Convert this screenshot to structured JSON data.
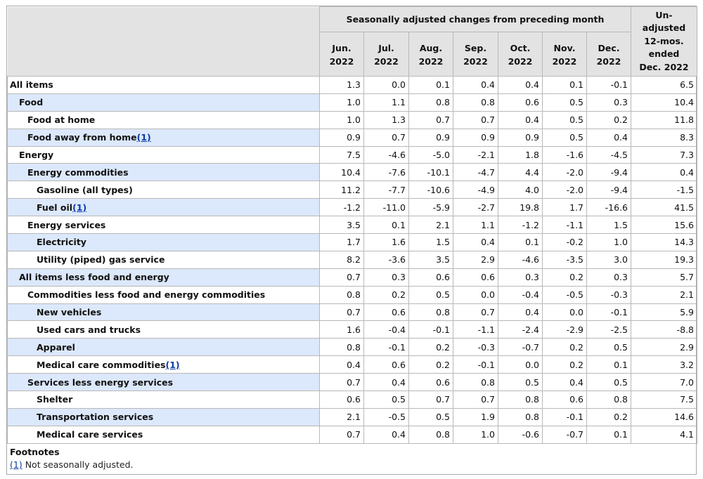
{
  "header": {
    "group_label": "Seasonally adjusted changes from preceding month",
    "months": [
      {
        "line1": "Jun.",
        "line2": "2022"
      },
      {
        "line1": "Jul.",
        "line2": "2022"
      },
      {
        "line1": "Aug.",
        "line2": "2022"
      },
      {
        "line1": "Sep.",
        "line2": "2022"
      },
      {
        "line1": "Oct.",
        "line2": "2022"
      },
      {
        "line1": "Nov.",
        "line2": "2022"
      },
      {
        "line1": "Dec.",
        "line2": "2022"
      }
    ],
    "unadjusted_lines": [
      "Un-",
      "adjusted",
      "12-mos.",
      "ended",
      "Dec. 2022"
    ]
  },
  "rows": [
    {
      "label": "All items",
      "level": 0,
      "shade": false,
      "fn": "",
      "values": [
        "1.3",
        "0.0",
        "0.1",
        "0.4",
        "0.4",
        "0.1",
        "-0.1",
        "6.5"
      ]
    },
    {
      "label": "Food",
      "level": 1,
      "shade": true,
      "fn": "",
      "values": [
        "1.0",
        "1.1",
        "0.8",
        "0.8",
        "0.6",
        "0.5",
        "0.3",
        "10.4"
      ]
    },
    {
      "label": "Food at home",
      "level": 2,
      "shade": false,
      "fn": "",
      "values": [
        "1.0",
        "1.3",
        "0.7",
        "0.7",
        "0.4",
        "0.5",
        "0.2",
        "11.8"
      ]
    },
    {
      "label": "Food away from home",
      "level": 2,
      "shade": true,
      "fn": "(1)",
      "values": [
        "0.9",
        "0.7",
        "0.9",
        "0.9",
        "0.9",
        "0.5",
        "0.4",
        "8.3"
      ]
    },
    {
      "label": "Energy",
      "level": 1,
      "shade": false,
      "fn": "",
      "values": [
        "7.5",
        "-4.6",
        "-5.0",
        "-2.1",
        "1.8",
        "-1.6",
        "-4.5",
        "7.3"
      ]
    },
    {
      "label": "Energy commodities",
      "level": 2,
      "shade": true,
      "fn": "",
      "values": [
        "10.4",
        "-7.6",
        "-10.1",
        "-4.7",
        "4.4",
        "-2.0",
        "-9.4",
        "0.4"
      ]
    },
    {
      "label": "Gasoline (all types)",
      "level": 3,
      "shade": false,
      "fn": "",
      "values": [
        "11.2",
        "-7.7",
        "-10.6",
        "-4.9",
        "4.0",
        "-2.0",
        "-9.4",
        "-1.5"
      ]
    },
    {
      "label": "Fuel oil",
      "level": 3,
      "shade": true,
      "fn": "(1)",
      "values": [
        "-1.2",
        "-11.0",
        "-5.9",
        "-2.7",
        "19.8",
        "1.7",
        "-16.6",
        "41.5"
      ]
    },
    {
      "label": "Energy services",
      "level": 2,
      "shade": false,
      "fn": "",
      "values": [
        "3.5",
        "0.1",
        "2.1",
        "1.1",
        "-1.2",
        "-1.1",
        "1.5",
        "15.6"
      ]
    },
    {
      "label": "Electricity",
      "level": 3,
      "shade": true,
      "fn": "",
      "values": [
        "1.7",
        "1.6",
        "1.5",
        "0.4",
        "0.1",
        "-0.2",
        "1.0",
        "14.3"
      ]
    },
    {
      "label": "Utility (piped) gas service",
      "level": 3,
      "shade": false,
      "fn": "",
      "values": [
        "8.2",
        "-3.6",
        "3.5",
        "2.9",
        "-4.6",
        "-3.5",
        "3.0",
        "19.3"
      ]
    },
    {
      "label": "All items less food and energy",
      "level": 1,
      "shade": true,
      "fn": "",
      "values": [
        "0.7",
        "0.3",
        "0.6",
        "0.6",
        "0.3",
        "0.2",
        "0.3",
        "5.7"
      ]
    },
    {
      "label": "Commodities less food and energy commodities",
      "level": 2,
      "shade": false,
      "fn": "",
      "values": [
        "0.8",
        "0.2",
        "0.5",
        "0.0",
        "-0.4",
        "-0.5",
        "-0.3",
        "2.1"
      ]
    },
    {
      "label": "New vehicles",
      "level": 3,
      "shade": true,
      "fn": "",
      "values": [
        "0.7",
        "0.6",
        "0.8",
        "0.7",
        "0.4",
        "0.0",
        "-0.1",
        "5.9"
      ]
    },
    {
      "label": "Used cars and trucks",
      "level": 3,
      "shade": false,
      "fn": "",
      "values": [
        "1.6",
        "-0.4",
        "-0.1",
        "-1.1",
        "-2.4",
        "-2.9",
        "-2.5",
        "-8.8"
      ]
    },
    {
      "label": "Apparel",
      "level": 3,
      "shade": true,
      "fn": "",
      "values": [
        "0.8",
        "-0.1",
        "0.2",
        "-0.3",
        "-0.7",
        "0.2",
        "0.5",
        "2.9"
      ]
    },
    {
      "label": "Medical care commodities",
      "level": 3,
      "shade": false,
      "fn": "(1)",
      "values": [
        "0.4",
        "0.6",
        "0.2",
        "-0.1",
        "0.0",
        "0.2",
        "0.1",
        "3.2"
      ]
    },
    {
      "label": "Services less energy services",
      "level": 2,
      "shade": true,
      "fn": "",
      "values": [
        "0.7",
        "0.4",
        "0.6",
        "0.8",
        "0.5",
        "0.4",
        "0.5",
        "7.0"
      ]
    },
    {
      "label": "Shelter",
      "level": 3,
      "shade": false,
      "fn": "",
      "values": [
        "0.6",
        "0.5",
        "0.7",
        "0.7",
        "0.8",
        "0.6",
        "0.8",
        "7.5"
      ]
    },
    {
      "label": "Transportation services",
      "level": 3,
      "shade": true,
      "fn": "",
      "values": [
        "2.1",
        "-0.5",
        "0.5",
        "1.9",
        "0.8",
        "-0.1",
        "0.2",
        "14.6"
      ]
    },
    {
      "label": "Medical care services",
      "level": 3,
      "shade": false,
      "fn": "",
      "values": [
        "0.7",
        "0.4",
        "0.8",
        "1.0",
        "-0.6",
        "-0.7",
        "0.1",
        "4.1"
      ]
    }
  ],
  "footnotes": {
    "title": "Footnotes",
    "items": [
      {
        "marker": "(1)",
        "text": " Not seasonally adjusted."
      }
    ]
  },
  "colors": {
    "header_bg": "#e3e3e3",
    "row_shade": "#dce8fb",
    "link": "#0b3aa8"
  }
}
